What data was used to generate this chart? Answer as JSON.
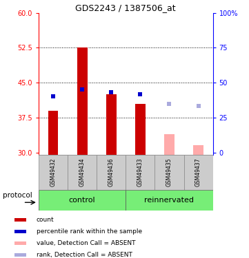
{
  "title": "GDS2243 / 1387506_at",
  "samples": [
    "GSM49432",
    "GSM49434",
    "GSM49436",
    "GSM49433",
    "GSM49435",
    "GSM49437"
  ],
  "bar_values": [
    39.0,
    52.5,
    42.5,
    40.5,
    null,
    null
  ],
  "bar_color": "#cc0000",
  "absent_bar_values": [
    null,
    null,
    null,
    null,
    34.0,
    31.5
  ],
  "absent_bar_color": "#ffaaaa",
  "blue_marker_values": [
    42.0,
    43.5,
    43.0,
    42.5,
    null,
    null
  ],
  "blue_marker_color": "#0000cc",
  "absent_blue_values": [
    null,
    null,
    null,
    null,
    40.5,
    40.0
  ],
  "absent_blue_color": "#aaaadd",
  "ylim": [
    29.5,
    60
  ],
  "yticks_left": [
    30,
    37.5,
    45,
    52.5,
    60
  ],
  "yticks_right": [
    0,
    25,
    50,
    75,
    100
  ],
  "grid_values": [
    37.5,
    45.0,
    52.5
  ],
  "group_color": "#77ee77",
  "sample_area_color": "#cccccc",
  "bar_width": 0.35,
  "legend_items": [
    {
      "label": "count",
      "color": "#cc0000"
    },
    {
      "label": "percentile rank within the sample",
      "color": "#0000cc"
    },
    {
      "label": "value, Detection Call = ABSENT",
      "color": "#ffaaaa"
    },
    {
      "label": "rank, Detection Call = ABSENT",
      "color": "#aaaadd"
    }
  ]
}
